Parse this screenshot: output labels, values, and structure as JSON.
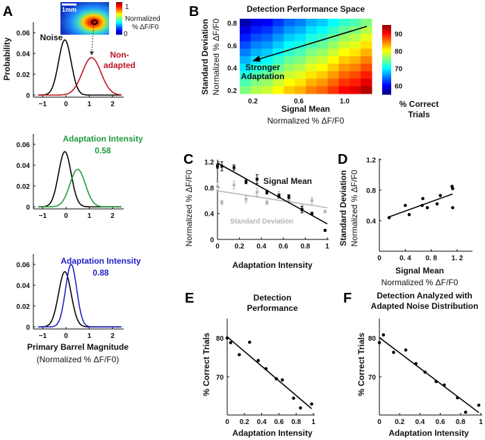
{
  "panel_labels": [
    "A",
    "B",
    "C",
    "D",
    "E",
    "F"
  ],
  "colors": {
    "noise": "#000000",
    "non_adapted": "#c0141e",
    "adapt_058": "#1e9a3c",
    "adapt_088": "#2020c8",
    "sd_series": "#b4b4b4"
  },
  "chart_data": [
    {
      "id": "A",
      "type": "line",
      "ylabel": "Probability",
      "xlabel": "Primary Barrel Magnitude",
      "xlabel_sub": "(Normalized % ΔF/F0)",
      "xticks": [
        -1,
        0,
        1,
        2
      ],
      "yticks": [
        0,
        0.02,
        0.04,
        0.06
      ],
      "xlim": [
        -1.4,
        2.4
      ],
      "ylim": [
        0,
        0.07
      ],
      "inset": {
        "scale_bar": "1mm",
        "colorbar_max": "1",
        "colorbar_min": "0",
        "colorbar_label1": "Normalized",
        "colorbar_label2": "% ΔF/F0"
      },
      "subplots": [
        {
          "curves": [
            {
              "name": "Noise",
              "mean": -0.05,
              "sd": 0.27,
              "peak": 0.053
            },
            {
              "name": "Non-adapted",
              "mean": 1.1,
              "sd": 0.4,
              "peak": 0.036
            }
          ],
          "labels": {
            "noise": "Noise",
            "signal1": "Non-",
            "signal2": "adapted"
          }
        },
        {
          "curves": [
            {
              "name": "Noise",
              "mean": -0.05,
              "sd": 0.27,
              "peak": 0.053
            },
            {
              "name": "Adaptation Intensity 0.58",
              "mean": 0.5,
              "sd": 0.33,
              "peak": 0.036
            }
          ],
          "labels": {
            "signal1": "Adaptation Intensity",
            "signal2": "0.58"
          }
        },
        {
          "curves": [
            {
              "name": "Noise",
              "mean": -0.05,
              "sd": 0.27,
              "peak": 0.053
            },
            {
              "name": "Adaptation Intensity 0.88",
              "mean": 0.22,
              "sd": 0.24,
              "peak": 0.06
            }
          ],
          "labels": {
            "signal1": "Adaptation Intensity",
            "signal2": "0.88"
          }
        }
      ]
    },
    {
      "id": "B",
      "type": "heatmap",
      "title": "Detection Performance Space",
      "xlabel": "Signal Mean",
      "xlabel_sub": "Normalized % ΔF/F0",
      "ylabel": "Standard Deviation",
      "ylabel_sub": "Normalized % ΔF/F0",
      "xlim": [
        0.08,
        1.24
      ],
      "ylim": [
        0.17,
        0.84
      ],
      "xticks": [
        "0.2",
        "0.6",
        "1.0"
      ],
      "xtick_vals": [
        0.2,
        0.6,
        1.0
      ],
      "yticks": [
        "0.2",
        "0.4",
        "0.6",
        "0.8"
      ],
      "ytick_vals": [
        0.2,
        0.4,
        0.6,
        0.8
      ],
      "colorbar": {
        "min": 55,
        "max": 95,
        "ticks": [
          60,
          70,
          80,
          90
        ],
        "label1": "% Correct",
        "label2": "Trials"
      },
      "annotation1": "Stronger",
      "annotation2": "Adaptation",
      "rows_top_to_bottom": [
        [
          57,
          59,
          60,
          62,
          64,
          65,
          67,
          68,
          70,
          72,
          73,
          75
        ],
        [
          59,
          61,
          62,
          64,
          66,
          67,
          69,
          70,
          72,
          74,
          75,
          77
        ],
        [
          61,
          63,
          64,
          66,
          68,
          69,
          71,
          72,
          74,
          76,
          77,
          79
        ],
        [
          63,
          65,
          66,
          68,
          70,
          71,
          73,
          74,
          76,
          78,
          79,
          81
        ],
        [
          65,
          67,
          68,
          70,
          72,
          73,
          75,
          76,
          78,
          80,
          81,
          83
        ],
        [
          67,
          69,
          70,
          72,
          74,
          75,
          77,
          78,
          80,
          82,
          83,
          85
        ],
        [
          69,
          71,
          72,
          74,
          76,
          77,
          79,
          80,
          82,
          84,
          85,
          87
        ],
        [
          71,
          73,
          74,
          76,
          78,
          79,
          81,
          82,
          84,
          86,
          87,
          89
        ],
        [
          73,
          75,
          76,
          78,
          80,
          81,
          83,
          84,
          86,
          88,
          89,
          91
        ],
        [
          75,
          77,
          78,
          80,
          82,
          83,
          85,
          86,
          88,
          90,
          91,
          93
        ]
      ]
    },
    {
      "id": "C",
      "type": "scatter",
      "xlabel": "Adaptation Intensity",
      "ylabel": "Normalized % ΔF/F0",
      "xlim": [
        0,
        1
      ],
      "ylim": [
        0,
        1.2
      ],
      "xticks": [
        "0",
        "0.2",
        "0.4",
        "0.6",
        "0.8",
        "1"
      ],
      "yticks": [
        "0",
        "0.4",
        "0.8",
        "1.2"
      ],
      "x": [
        0,
        0.04,
        0.15,
        0.26,
        0.36,
        0.45,
        0.56,
        0.65,
        0.77,
        0.86,
        0.98
      ],
      "series": [
        {
          "name": "Signal Mean",
          "values": [
            1.13,
            1.13,
            1.11,
            0.89,
            0.93,
            0.73,
            0.67,
            0.66,
            0.46,
            0.4,
            0.14
          ],
          "err": [
            0.03,
            0.07,
            0.04,
            0.03,
            0.07,
            0.03,
            0.03,
            0.03,
            0.05,
            0.02,
            0.01
          ],
          "fit": [
            1.18,
            0.24
          ]
        },
        {
          "name": "Standard Deviation",
          "values": [
            0.82,
            0.57,
            0.84,
            0.62,
            0.73,
            0.57,
            0.69,
            0.59,
            0.48,
            0.6,
            0.43
          ],
          "err": [
            0.06,
            0.03,
            0.06,
            0.05,
            0.06,
            0.03,
            0.05,
            0.03,
            0.05,
            0.05,
            0.02
          ],
          "fit": [
            0.75,
            0.49
          ]
        }
      ]
    },
    {
      "id": "D",
      "type": "scatter",
      "xlabel": "Signal Mean",
      "xlabel_sub": "Normalized % ΔF/F0",
      "ylabel": "Standard Deviation",
      "ylabel_sub": "Normalized % ΔF/F0",
      "xlim": [
        0,
        1.25
      ],
      "ylim": [
        0,
        1.2
      ],
      "xticks": [
        "0",
        "0. 4",
        "0. 8",
        "1. 2"
      ],
      "yticks": [
        "0.4",
        "0.8",
        "1.2"
      ],
      "x": [
        0.15,
        0.4,
        0.46,
        0.66,
        0.67,
        0.74,
        0.89,
        0.94,
        1.12,
        1.13,
        1.13
      ],
      "y": [
        0.44,
        0.6,
        0.48,
        0.6,
        0.69,
        0.57,
        0.62,
        0.73,
        0.85,
        0.82,
        0.57
      ],
      "fit": {
        "x": [
          0.15,
          1.13
        ],
        "y": [
          0.45,
          0.75
        ]
      }
    },
    {
      "id": "E",
      "type": "scatter",
      "title1": "Detection",
      "title2": "Performance",
      "xlabel": "Adaptation Intensity",
      "ylabel": "% Correct Trials",
      "xlim": [
        0,
        1
      ],
      "ylim": [
        60.5,
        85
      ],
      "xticks": [
        "0",
        "0.2",
        "0.4",
        "0.6",
        "0.8",
        "1"
      ],
      "yticks": [
        "70",
        "80"
      ],
      "x": [
        0,
        0.04,
        0.14,
        0.26,
        0.36,
        0.45,
        0.57,
        0.64,
        0.77,
        0.85,
        0.98
      ],
      "y": [
        80,
        78.8,
        75.7,
        78.9,
        74.2,
        72.1,
        69.5,
        69.2,
        64.5,
        62.0,
        63.0
      ],
      "fit": {
        "x": [
          0,
          0.98
        ],
        "y": [
          80.3,
          61.8
        ]
      }
    },
    {
      "id": "F",
      "type": "scatter",
      "title1": "Detection Analyzed with",
      "title2": "Adapted Noise Distribution",
      "xlabel": "Adaptation Intensity",
      "ylabel": "% Correct Trials",
      "xlim": [
        0,
        1
      ],
      "ylim": [
        60.5,
        85
      ],
      "xticks": [
        "0",
        "0.2",
        "0.4",
        "0.6",
        "0.8",
        "1"
      ],
      "yticks": [
        "70",
        "80"
      ],
      "x": [
        0,
        0.04,
        0.14,
        0.26,
        0.36,
        0.45,
        0.56,
        0.64,
        0.77,
        0.85,
        0.98
      ],
      "y": [
        78.8,
        80.8,
        76.3,
        76.9,
        73.4,
        71.2,
        68.8,
        67.9,
        64.6,
        60.9,
        62.7
      ],
      "fit": {
        "x": [
          0,
          0.98
        ],
        "y": [
          80.1,
          60.8
        ]
      }
    }
  ]
}
